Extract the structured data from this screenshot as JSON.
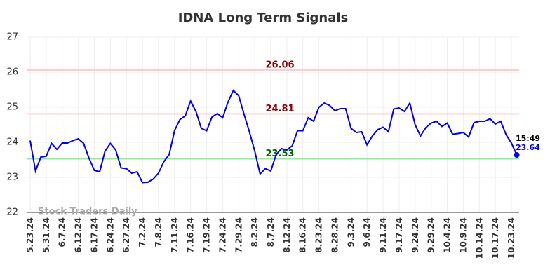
{
  "chart_data": {
    "type": "line",
    "title": "IDNA Long Term Signals",
    "watermark": "Stock Traders Daily",
    "categories": [
      "5.23.24",
      null,
      null,
      "5.31.24",
      null,
      null,
      "6.7.24",
      null,
      null,
      "6.12.24",
      null,
      null,
      "6.17.24",
      null,
      null,
      "6.24.24",
      null,
      null,
      "6.27.24",
      null,
      null,
      "7.2.24",
      null,
      null,
      "7.8.24",
      null,
      null,
      "7.11.24",
      null,
      null,
      "7.16.24",
      null,
      null,
      "7.19.24",
      null,
      null,
      "7.24.24",
      null,
      null,
      "7.29.24",
      null,
      null,
      "8.2.24",
      null,
      null,
      "8.7.24",
      null,
      null,
      "8.12.24",
      null,
      null,
      "8.16.24",
      null,
      null,
      "8.23.24",
      null,
      null,
      "8.28.24",
      null,
      null,
      "9.3.24",
      null,
      null,
      "9.6.24",
      null,
      null,
      "9.11.24",
      null,
      null,
      "9.17.24",
      null,
      null,
      "9.24.24",
      null,
      null,
      "9.29.24",
      null,
      null,
      "10.4.24",
      null,
      null,
      "10.9.24",
      null,
      null,
      "10.14.24",
      null,
      null,
      "10.17.24",
      null,
      null,
      "10.23.24",
      null
    ],
    "values": [
      24.05,
      23.18,
      23.58,
      23.6,
      23.97,
      23.8,
      23.98,
      23.98,
      24.05,
      24.1,
      23.97,
      23.55,
      23.2,
      23.16,
      23.75,
      23.97,
      23.78,
      23.27,
      23.25,
      23.12,
      23.16,
      22.85,
      22.86,
      22.95,
      23.12,
      23.45,
      23.65,
      24.33,
      24.65,
      24.75,
      25.18,
      24.88,
      24.4,
      24.33,
      24.72,
      24.82,
      24.7,
      25.15,
      25.48,
      25.33,
      24.8,
      24.3,
      23.75,
      23.1,
      23.25,
      23.18,
      23.65,
      23.82,
      23.78,
      23.9,
      24.33,
      24.33,
      24.7,
      24.6,
      25.0,
      25.12,
      25.05,
      24.9,
      24.96,
      24.96,
      24.4,
      24.28,
      24.3,
      23.93,
      24.18,
      24.36,
      24.43,
      24.3,
      24.95,
      24.98,
      24.88,
      25.12,
      24.5,
      24.18,
      24.42,
      24.55,
      24.6,
      24.45,
      24.55,
      24.23,
      24.25,
      24.28,
      24.15,
      24.56,
      24.6,
      24.6,
      24.67,
      24.52,
      24.6,
      24.22,
      23.98,
      23.64
    ],
    "color": "#0000ee",
    "last_time": "15:49",
    "hlines": [
      {
        "value": 26.06,
        "color": "#ffcccc",
        "label_color": "#8b0000"
      },
      {
        "value": 24.81,
        "color": "#ffcccc",
        "label_color": "#8b0000"
      },
      {
        "value": 23.53,
        "color": "#90ee90",
        "label_color": "#006400"
      }
    ],
    "ylim": [
      22,
      27
    ],
    "yticks": [
      22,
      23,
      24,
      25,
      26,
      27
    ],
    "grid": true
  }
}
